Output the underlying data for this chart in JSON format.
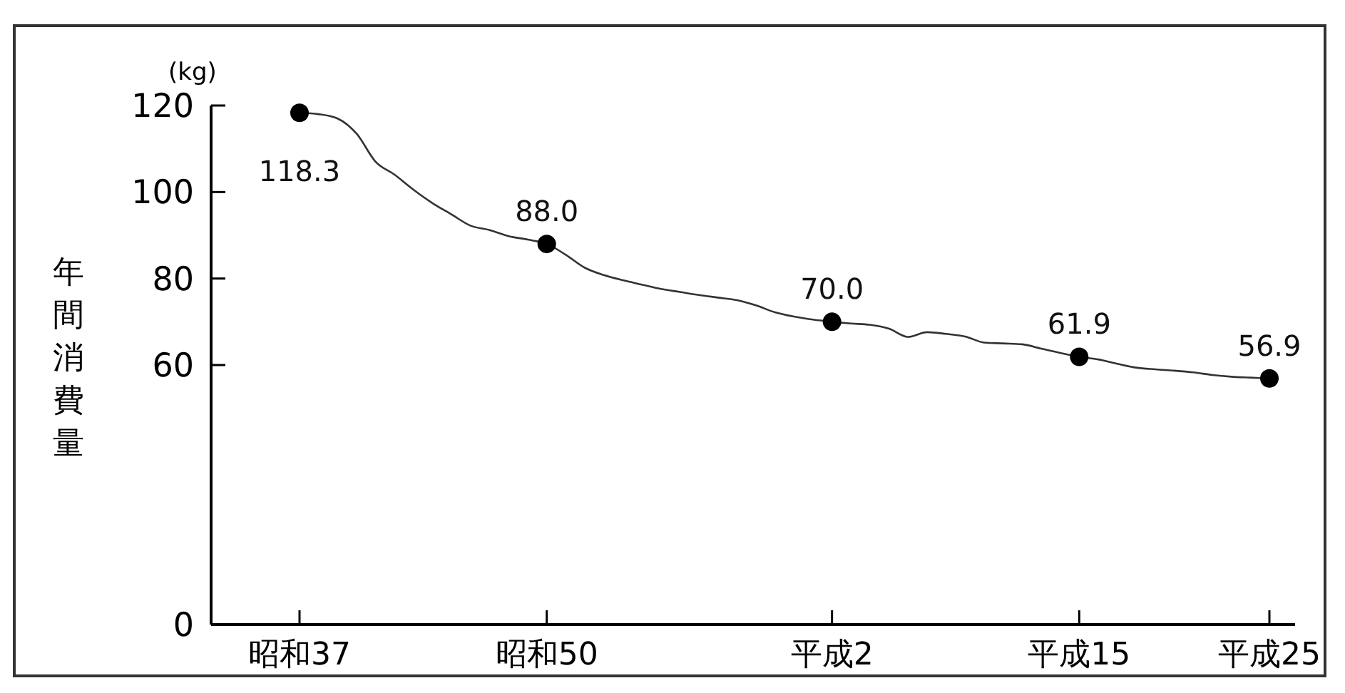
{
  "chart_data": {
    "type": "line",
    "ylabel": "年間消費量",
    "annotations": [
      "(kg)"
    ],
    "categories": [
      "昭和37",
      null,
      null,
      null,
      null,
      null,
      null,
      null,
      null,
      null,
      null,
      null,
      null,
      "昭和50",
      null,
      null,
      null,
      null,
      null,
      null,
      null,
      null,
      null,
      null,
      null,
      null,
      null,
      null,
      "平成2",
      null,
      null,
      null,
      null,
      null,
      null,
      null,
      null,
      null,
      null,
      null,
      null,
      "平成15",
      null,
      null,
      null,
      null,
      null,
      null,
      null,
      null,
      null,
      "平成25"
    ],
    "ylim": [
      0,
      120
    ],
    "yticks": [
      0,
      60,
      80,
      100,
      120
    ],
    "grid": false,
    "series": [
      {
        "color": "#333333",
        "marker": "none",
        "values": [
          118.3,
          118.0,
          117.0,
          113.5,
          107,
          104,
          100.5,
          97.4,
          94.8,
          92.2,
          91.2,
          89.8,
          89.0,
          88.0,
          85.5,
          82.5,
          80.8,
          79.6,
          78.6,
          77.6,
          76.9,
          76.2,
          75.6,
          75.0,
          73.8,
          72.2,
          71.2,
          70.5,
          70.0,
          69.6,
          69.3,
          68.4,
          66.5,
          67.6,
          67.2,
          66.6,
          65.2,
          65.0,
          64.8,
          63.8,
          62.8,
          61.9,
          61.3,
          60.3,
          59.4,
          59.0,
          58.7,
          58.3,
          57.7,
          57.3,
          57.1,
          56.9
        ]
      },
      {
        "type": "scatter",
        "color": "#000000",
        "marker": "circle",
        "values": [
          118.3,
          null,
          null,
          null,
          null,
          null,
          null,
          null,
          null,
          null,
          null,
          null,
          null,
          88.0,
          null,
          null,
          null,
          null,
          null,
          null,
          null,
          null,
          null,
          null,
          null,
          null,
          null,
          null,
          70.0,
          null,
          null,
          null,
          null,
          null,
          null,
          null,
          null,
          null,
          null,
          null,
          null,
          61.9,
          null,
          null,
          null,
          null,
          null,
          null,
          null,
          null,
          null,
          56.9
        ],
        "value_labels": [
          "118.3",
          null,
          null,
          null,
          null,
          null,
          null,
          null,
          null,
          null,
          null,
          null,
          null,
          "88.0",
          null,
          null,
          null,
          null,
          null,
          null,
          null,
          null,
          null,
          null,
          null,
          null,
          null,
          null,
          "70.0",
          null,
          null,
          null,
          null,
          null,
          null,
          null,
          null,
          null,
          null,
          null,
          null,
          "61.9",
          null,
          null,
          null,
          null,
          null,
          null,
          null,
          null,
          null,
          "56.9"
        ]
      }
    ]
  }
}
